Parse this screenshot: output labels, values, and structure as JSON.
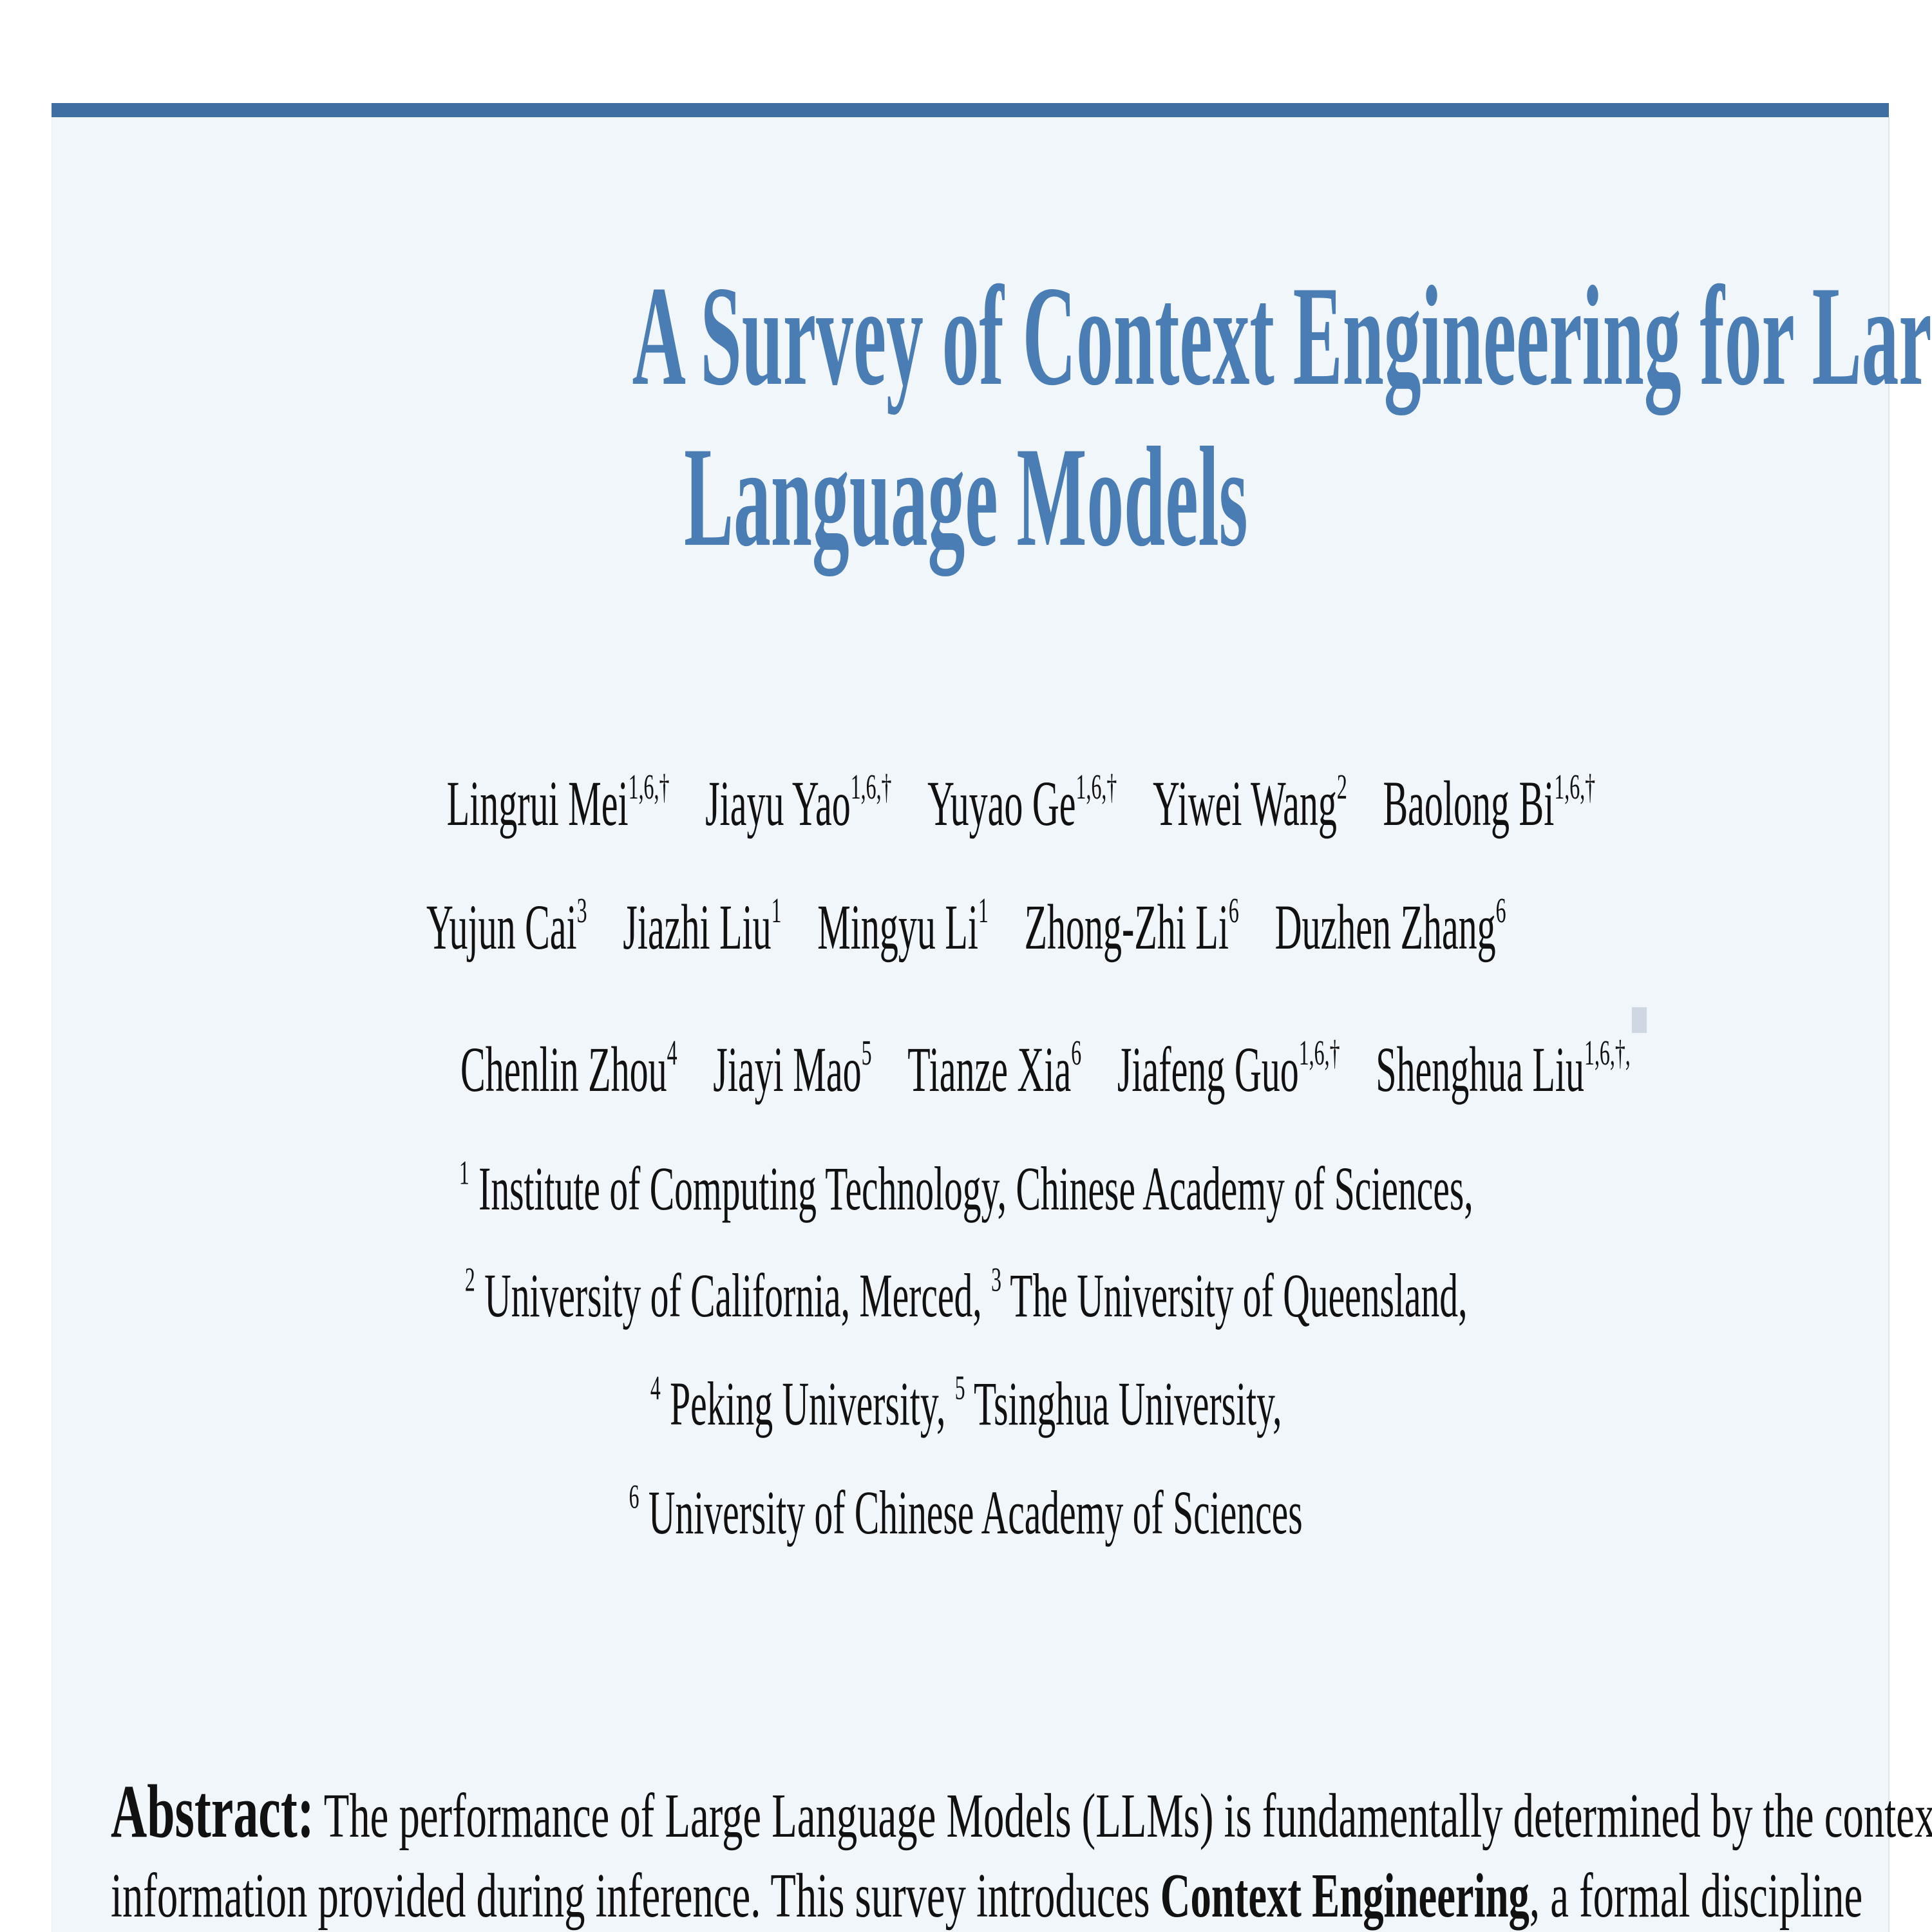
{
  "title": {
    "line1": "A Survey of Context Engineering for Large",
    "line2": "Language Models"
  },
  "authors": {
    "row1": [
      {
        "name": "Lingrui Mei",
        "sup": "1,6,†"
      },
      {
        "name": "Jiayu Yao",
        "sup": "1,6,†"
      },
      {
        "name": "Yuyao Ge",
        "sup": "1,6,†"
      },
      {
        "name": "Yiwei Wang",
        "sup": "2"
      },
      {
        "name": "Baolong Bi",
        "sup": "1,6,†"
      }
    ],
    "row2": [
      {
        "name": "Yujun Cai",
        "sup": "3"
      },
      {
        "name": "Jiazhi Liu",
        "sup": "1"
      },
      {
        "name": "Mingyu Li",
        "sup": "1"
      },
      {
        "name": "Zhong-Zhi Li",
        "sup": "6"
      },
      {
        "name": "Duzhen Zhang",
        "sup": "6"
      }
    ],
    "row3": [
      {
        "name": "Chenlin Zhou",
        "sup": "4"
      },
      {
        "name": "Jiayi Mao",
        "sup": "5"
      },
      {
        "name": "Tianze Xia",
        "sup": "6"
      },
      {
        "name": "Jiafeng Guo",
        "sup": "1,6,†"
      },
      {
        "name": "Shenghua Liu",
        "sup": "1,6,†,"
      }
    ],
    "corresponding_icon": "envelope-icon"
  },
  "affiliations": [
    {
      "num": "1",
      "text": "Institute of Computing Technology, Chinese Academy of Sciences,"
    },
    {
      "num": "2",
      "text": "University of California, Merced,"
    },
    {
      "num": "3",
      "text": "The University of Queensland,"
    },
    {
      "num": "4",
      "text": "Peking University,"
    },
    {
      "num": "5",
      "text": "Tsinghua University,"
    },
    {
      "num": "6",
      "text": "University of Chinese Academy of Sciences"
    }
  ],
  "abstract": {
    "label": "Abstract:",
    "line1": "The performance of Large Language Models (LLMs) is fundamentally determined by the contextual",
    "line2_pre": "information provided during inference.  This survey introduces",
    "line2_bold": "Context Engineering",
    "line2_post": ", a formal discipline"
  },
  "colors": {
    "accent": "#3f6fa2",
    "title": "#4a7db4",
    "panel": "#f1f6fb"
  }
}
